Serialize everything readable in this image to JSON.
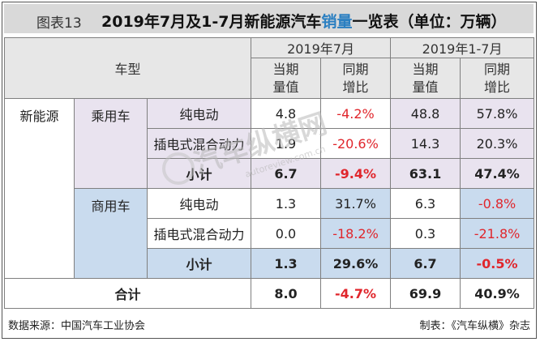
{
  "header": {
    "figure_label": "图表13",
    "title_part1": "2019年7月及1-7月新能源汽车",
    "title_highlight": "销量",
    "title_part2": "一览表（单位：万辆）"
  },
  "table": {
    "vehicle_type_label": "车型",
    "period_july": "2019年7月",
    "period_ytd": "2019年1-7月",
    "col_value_line1": "当期",
    "col_value_line2": "量值",
    "col_yoy_line1": "同期",
    "col_yoy_line2": "增比",
    "category": "新能源",
    "passenger": {
      "label": "乘用车",
      "rows": [
        {
          "sub": "纯电动",
          "jul_value": "4.8",
          "jul_yoy": "-4.2%",
          "ytd_value": "48.8",
          "ytd_yoy": "57.8%"
        },
        {
          "sub": "插电式混合动力",
          "jul_value": "1.9",
          "jul_yoy": "-20.6%",
          "ytd_value": "14.3",
          "ytd_yoy": "20.3%"
        }
      ],
      "subtotal": {
        "label": "小计",
        "jul_value": "6.7",
        "jul_yoy": "-9.4%",
        "ytd_value": "63.1",
        "ytd_yoy": "47.4%"
      }
    },
    "commercial": {
      "label": "商用车",
      "rows": [
        {
          "sub": "纯电动",
          "jul_value": "1.3",
          "jul_yoy": "31.7%",
          "ytd_value": "6.3",
          "ytd_yoy": "-0.8%"
        },
        {
          "sub": "插电式混合动力",
          "jul_value": "0.0",
          "jul_yoy": "-18.2%",
          "ytd_value": "0.3",
          "ytd_yoy": "-21.8%"
        }
      ],
      "subtotal": {
        "label": "小计",
        "jul_value": "1.3",
        "jul_yoy": "29.6%",
        "ytd_value": "6.7",
        "ytd_yoy": "-0.5%"
      }
    },
    "total": {
      "label": "合计",
      "jul_value": "8.0",
      "jul_yoy": "-4.7%",
      "ytd_value": "69.9",
      "ytd_yoy": "40.9%"
    }
  },
  "footer": {
    "source": "数据来源：中国汽车工业协会",
    "producer": "制表：《汽车纵横》杂志"
  },
  "watermark": {
    "text": "汽车纵横网",
    "url": "autoreview.com.cn"
  },
  "colors": {
    "negative": "#e0262c",
    "title_highlight": "#2a7fc1",
    "passenger_fill": "#e9e3ef",
    "commercial_fill": "#c9dbee",
    "header_fill": "#e7e7e7"
  }
}
